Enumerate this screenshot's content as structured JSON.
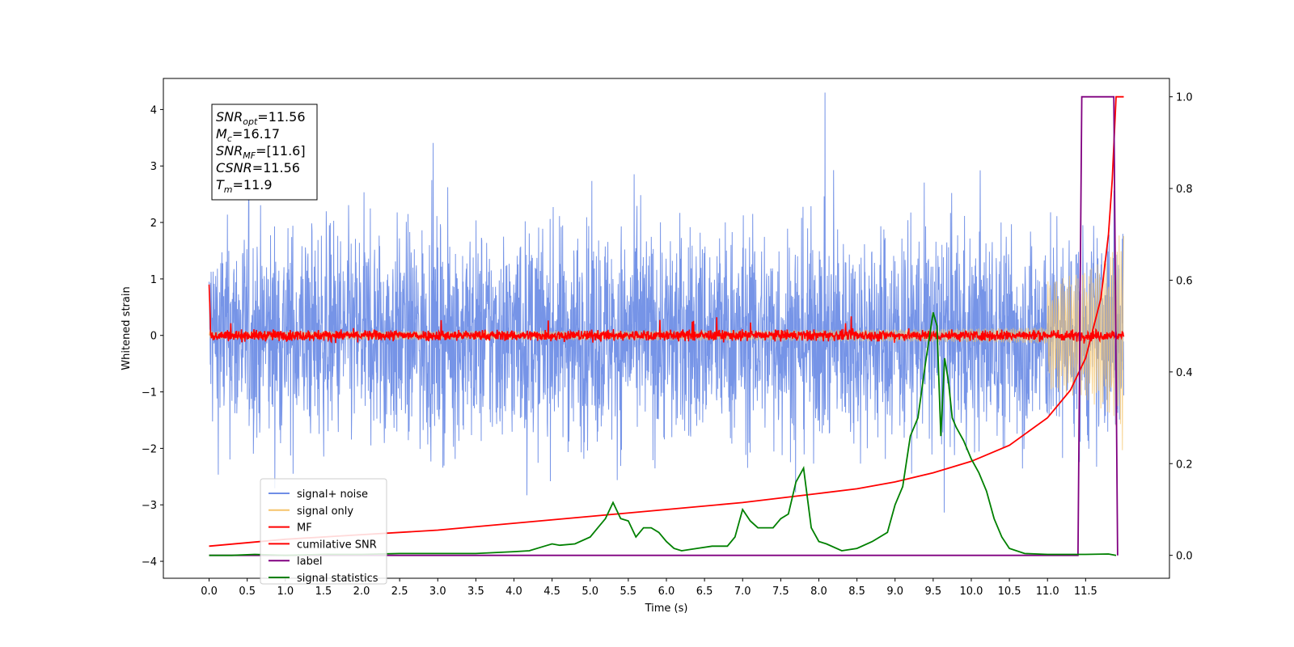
{
  "chart_data": {
    "type": "line",
    "xlabel": "Time (s)",
    "ylabel": "Whitened strain",
    "xlim": [
      -0.6,
      12.6
    ],
    "ylim": [
      -4.3,
      4.55
    ],
    "y2lim": [
      -0.05,
      1.04
    ],
    "x_ticks": [
      "0.0",
      "0.5",
      "1.0",
      "1.5",
      "2.0",
      "2.5",
      "3.0",
      "3.5",
      "4.0",
      "4.5",
      "5.0",
      "5.5",
      "6.0",
      "6.5",
      "7.0",
      "7.5",
      "8.0",
      "8.5",
      "9.0",
      "9.5",
      "10.0",
      "10.5",
      "11.0",
      "11.5"
    ],
    "y_ticks": [
      "4",
      "3",
      "2",
      "1",
      "0",
      "−1",
      "−2",
      "−3",
      "−4"
    ],
    "y2_ticks": [
      "1.0",
      "0.8",
      "0.6",
      "0.4",
      "0.2",
      "0.0"
    ],
    "legend_placement": "lower-left",
    "info_box": {
      "snr_opt": {
        "base": "SNR",
        "sub": "opt",
        "value": "=11.56"
      },
      "mc": {
        "base": "M",
        "sub": "c",
        "value": "=16.17"
      },
      "snr_mf": {
        "base": "SNR",
        "sub": "MF",
        "value": "=[11.6]"
      },
      "csnr": {
        "base": "CSNR",
        "value": "=11.56"
      },
      "tm": {
        "base": "T",
        "sub": "m",
        "value": "=11.9"
      }
    },
    "series": [
      {
        "name": "signal+ noise",
        "color": "#6f8ee6",
        "axis": "left",
        "kind": "noise",
        "envelope": 1.7,
        "x_range": [
          0.0,
          12.0
        ]
      },
      {
        "name": "signal only",
        "color": "#f5c46a",
        "axis": "left",
        "kind": "chirp",
        "amplitude_end": 2.2,
        "x_range": [
          0.0,
          12.0
        ]
      },
      {
        "name": "MF",
        "color": "#ff0000",
        "axis": "left",
        "kind": "mf",
        "noise_amp": 0.08,
        "x_range": [
          0.0,
          12.0
        ]
      },
      {
        "name": "cumilative SNR",
        "color": "#ff0000",
        "axis": "right",
        "x": [
          0.0,
          1.0,
          2.0,
          3.0,
          4.0,
          5.0,
          6.0,
          7.0,
          8.0,
          8.5,
          9.0,
          9.5,
          10.0,
          10.5,
          11.0,
          11.3,
          11.5,
          11.7,
          11.8,
          11.85,
          11.9,
          12.0
        ],
        "y": [
          0.02,
          0.035,
          0.045,
          0.055,
          0.07,
          0.085,
          0.1,
          0.115,
          0.135,
          0.145,
          0.16,
          0.18,
          0.205,
          0.24,
          0.3,
          0.36,
          0.43,
          0.56,
          0.7,
          0.82,
          1.0,
          1.0
        ]
      },
      {
        "name": "label",
        "color": "#800080",
        "axis": "right",
        "x": [
          0.0,
          11.4,
          11.45,
          11.87,
          11.92
        ],
        "y": [
          0.0,
          0.0,
          1.0,
          1.0,
          0.0
        ]
      },
      {
        "name": "signal statistics",
        "color": "#008000",
        "axis": "right",
        "x": [
          0.0,
          0.3,
          0.6,
          1.0,
          1.5,
          2.0,
          2.5,
          3.0,
          3.5,
          4.0,
          4.2,
          4.4,
          4.5,
          4.6,
          4.8,
          5.0,
          5.1,
          5.2,
          5.3,
          5.4,
          5.5,
          5.6,
          5.7,
          5.8,
          5.9,
          6.0,
          6.1,
          6.2,
          6.4,
          6.6,
          6.8,
          6.9,
          7.0,
          7.1,
          7.2,
          7.3,
          7.4,
          7.5,
          7.6,
          7.7,
          7.8,
          7.9,
          8.0,
          8.1,
          8.3,
          8.5,
          8.7,
          8.9,
          9.0,
          9.1,
          9.2,
          9.3,
          9.4,
          9.5,
          9.55,
          9.6,
          9.65,
          9.7,
          9.75,
          9.8,
          9.9,
          10.0,
          10.1,
          10.2,
          10.3,
          10.4,
          10.5,
          10.7,
          11.0,
          11.5,
          11.8,
          11.9
        ],
        "y": [
          0.0,
          0.0,
          0.002,
          0.0,
          0.002,
          0.002,
          0.004,
          0.004,
          0.004,
          0.008,
          0.01,
          0.02,
          0.025,
          0.022,
          0.025,
          0.04,
          0.06,
          0.08,
          0.115,
          0.08,
          0.075,
          0.04,
          0.06,
          0.06,
          0.05,
          0.03,
          0.015,
          0.01,
          0.015,
          0.02,
          0.02,
          0.04,
          0.1,
          0.075,
          0.06,
          0.06,
          0.06,
          0.08,
          0.09,
          0.16,
          0.19,
          0.06,
          0.03,
          0.025,
          0.01,
          0.015,
          0.03,
          0.05,
          0.11,
          0.15,
          0.26,
          0.3,
          0.42,
          0.53,
          0.5,
          0.26,
          0.43,
          0.38,
          0.3,
          0.28,
          0.25,
          0.21,
          0.18,
          0.14,
          0.08,
          0.04,
          0.015,
          0.004,
          0.002,
          0.002,
          0.003,
          0.0
        ]
      }
    ]
  }
}
